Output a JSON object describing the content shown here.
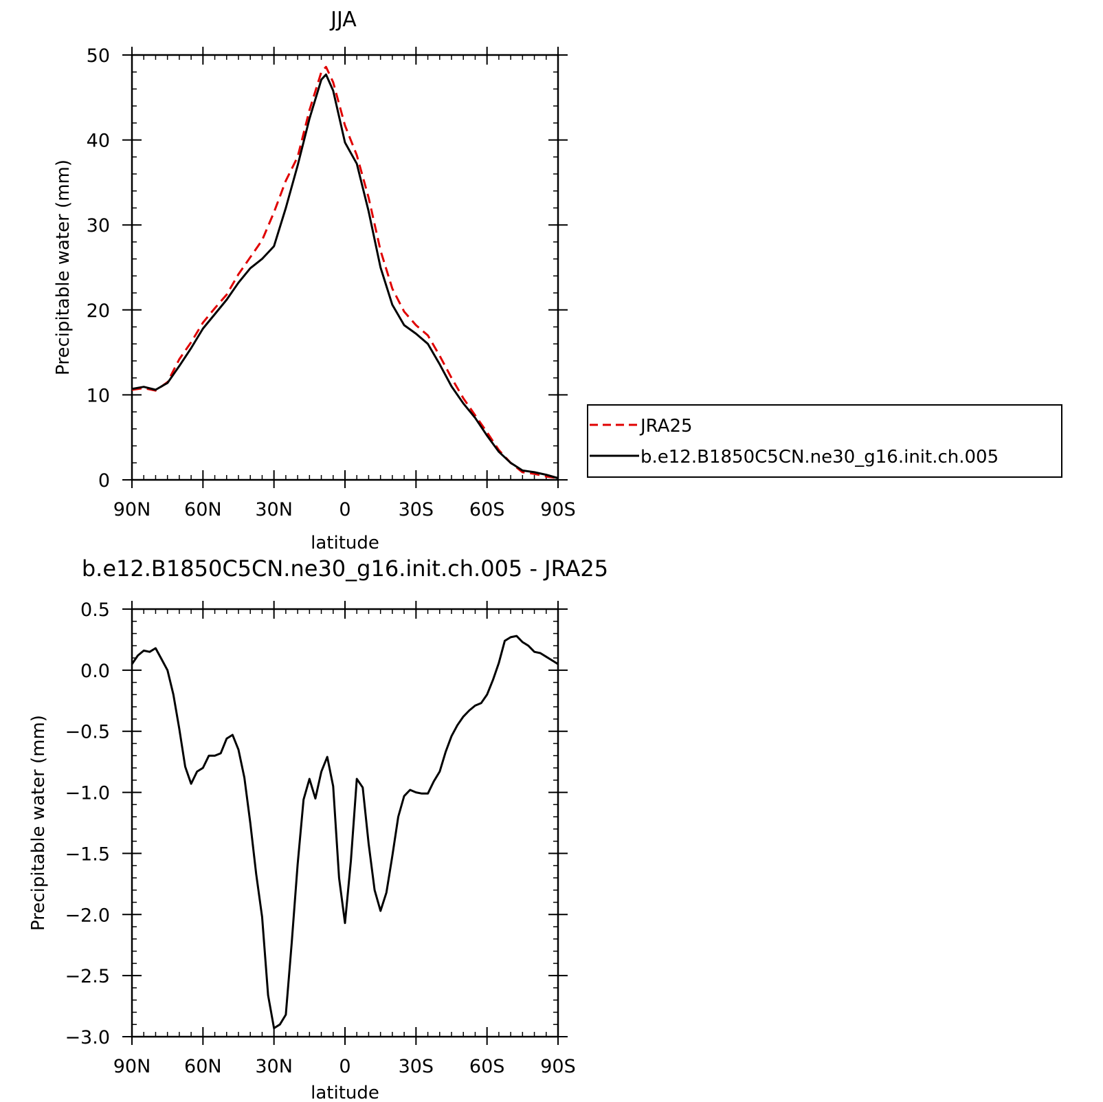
{
  "chart_data": [
    {
      "type": "line",
      "title": "JJA",
      "xlabel": "latitude",
      "ylabel": "Precipitable water (mm)",
      "xlim": [
        90,
        -90
      ],
      "ylim": [
        0,
        50
      ],
      "x_ticks": [
        {
          "value": 90,
          "label": "90N"
        },
        {
          "value": 60,
          "label": "60N"
        },
        {
          "value": 30,
          "label": "30N"
        },
        {
          "value": 0,
          "label": "0"
        },
        {
          "value": -30,
          "label": "30S"
        },
        {
          "value": -60,
          "label": "60S"
        },
        {
          "value": -90,
          "label": "90S"
        }
      ],
      "y_ticks": [
        {
          "value": 0,
          "label": "0"
        },
        {
          "value": 10,
          "label": "10"
        },
        {
          "value": 20,
          "label": "20"
        },
        {
          "value": 30,
          "label": "30"
        },
        {
          "value": 40,
          "label": "40"
        },
        {
          "value": 50,
          "label": "50"
        }
      ],
      "legend_position": "right",
      "series": [
        {
          "name": "JRA25",
          "color": "#e00000",
          "dash": "dashed",
          "x": [
            90,
            85,
            80,
            75,
            70,
            65,
            60,
            55,
            50,
            45,
            40,
            35,
            30,
            25,
            20,
            15,
            10,
            8,
            5,
            0,
            -5,
            -10,
            -15,
            -20,
            -25,
            -30,
            -35,
            -40,
            -45,
            -50,
            -55,
            -60,
            -65,
            -70,
            -75,
            -80,
            -85,
            -90
          ],
          "y": [
            10.6,
            10.8,
            10.5,
            11.5,
            14.2,
            16.2,
            18.5,
            20.2,
            21.8,
            24.2,
            26.2,
            28.2,
            31.5,
            35.2,
            38.0,
            43.5,
            48.0,
            48.6,
            46.8,
            41.7,
            38.2,
            33.2,
            27.0,
            22.5,
            19.8,
            18.2,
            17.0,
            14.6,
            12.0,
            9.6,
            7.6,
            5.6,
            3.5,
            2.0,
            0.9,
            0.7,
            0.4,
            0.2
          ]
        },
        {
          "name": "b.e12.B1850C5CN.ne30_g16.init.ch.005",
          "color": "#000000",
          "dash": "solid",
          "x": [
            90,
            85,
            80,
            75,
            70,
            65,
            60,
            55,
            50,
            45,
            40,
            35,
            30,
            25,
            20,
            15,
            10,
            8,
            5,
            0,
            -5,
            -10,
            -15,
            -20,
            -25,
            -30,
            -35,
            -40,
            -45,
            -50,
            -55,
            -60,
            -65,
            -70,
            -75,
            -80,
            -85,
            -90
          ],
          "y": [
            10.7,
            10.95,
            10.6,
            11.4,
            13.4,
            15.5,
            17.8,
            19.5,
            21.2,
            23.2,
            24.9,
            26.0,
            27.5,
            32.0,
            37.0,
            42.5,
            47.1,
            47.7,
            45.8,
            39.7,
            37.2,
            31.6,
            25.0,
            20.6,
            18.2,
            17.2,
            16.0,
            13.6,
            11.0,
            9.0,
            7.3,
            5.2,
            3.3,
            2.0,
            1.1,
            0.9,
            0.6,
            0.2
          ]
        }
      ]
    },
    {
      "type": "line",
      "title": "b.e12.B1850C5CN.ne30_g16.init.ch.005 - JRA25",
      "xlabel": "latitude",
      "ylabel": "Precipitable water (mm)",
      "xlim": [
        90,
        -90
      ],
      "ylim": [
        -3.0,
        0.5
      ],
      "x_ticks": [
        {
          "value": 90,
          "label": "90N"
        },
        {
          "value": 60,
          "label": "60N"
        },
        {
          "value": 30,
          "label": "30N"
        },
        {
          "value": 0,
          "label": "0"
        },
        {
          "value": -30,
          "label": "30S"
        },
        {
          "value": -60,
          "label": "60S"
        },
        {
          "value": -90,
          "label": "90S"
        }
      ],
      "y_ticks": [
        {
          "value": 0.5,
          "label": "0.5"
        },
        {
          "value": 0.0,
          "label": "0.0"
        },
        {
          "value": -0.5,
          "label": "-0.5"
        },
        {
          "value": -1.0,
          "label": "-1.0"
        },
        {
          "value": -1.5,
          "label": "-1.5"
        },
        {
          "value": -2.0,
          "label": "-2.0"
        },
        {
          "value": -2.5,
          "label": "-2.5"
        },
        {
          "value": -3.0,
          "label": "-3.0"
        }
      ],
      "series": [
        {
          "color": "#000000",
          "dash": "solid",
          "x": [
            90,
            87.5,
            85,
            82.5,
            80,
            77.5,
            75,
            72.5,
            70,
            67.5,
            65,
            62.5,
            60,
            57.5,
            55,
            52.5,
            50,
            47.5,
            45,
            42.5,
            40,
            37.5,
            35,
            32.5,
            30,
            27.5,
            25,
            22.5,
            20,
            17.5,
            15,
            12.5,
            10,
            7.5,
            5,
            2.5,
            0,
            -2.5,
            -5,
            -7.5,
            -10,
            -12.5,
            -15,
            -17.5,
            -20,
            -22.5,
            -25,
            -27.5,
            -30,
            -32.5,
            -35,
            -37.5,
            -40,
            -42.5,
            -45,
            -47.5,
            -50,
            -52.5,
            -55,
            -57.5,
            -60,
            -62.5,
            -65,
            -67.5,
            -70,
            -72.5,
            -75,
            -77.5,
            -80,
            -82.5,
            -85,
            -87.5,
            -90
          ],
          "y": [
            0.05,
            0.12,
            0.16,
            0.15,
            0.18,
            0.09,
            0.0,
            -0.2,
            -0.48,
            -0.79,
            -0.93,
            -0.83,
            -0.8,
            -0.7,
            -0.7,
            -0.68,
            -0.56,
            -0.53,
            -0.65,
            -0.88,
            -1.25,
            -1.67,
            -2.02,
            -2.66,
            -2.93,
            -2.9,
            -2.82,
            -2.23,
            -1.59,
            -1.06,
            -0.89,
            -1.05,
            -0.83,
            -0.71,
            -0.95,
            -1.7,
            -2.07,
            -1.56,
            -0.89,
            -0.96,
            -1.42,
            -1.8,
            -1.97,
            -1.82,
            -1.52,
            -1.2,
            -1.03,
            -0.98,
            -1.0,
            -1.01,
            -1.01,
            -0.91,
            -0.83,
            -0.67,
            -0.54,
            -0.45,
            -0.38,
            -0.33,
            -0.29,
            -0.27,
            -0.2,
            -0.08,
            0.06,
            0.24,
            0.27,
            0.28,
            0.23,
            0.2,
            0.15,
            0.14,
            0.11,
            0.08,
            0.05
          ]
        }
      ]
    }
  ]
}
